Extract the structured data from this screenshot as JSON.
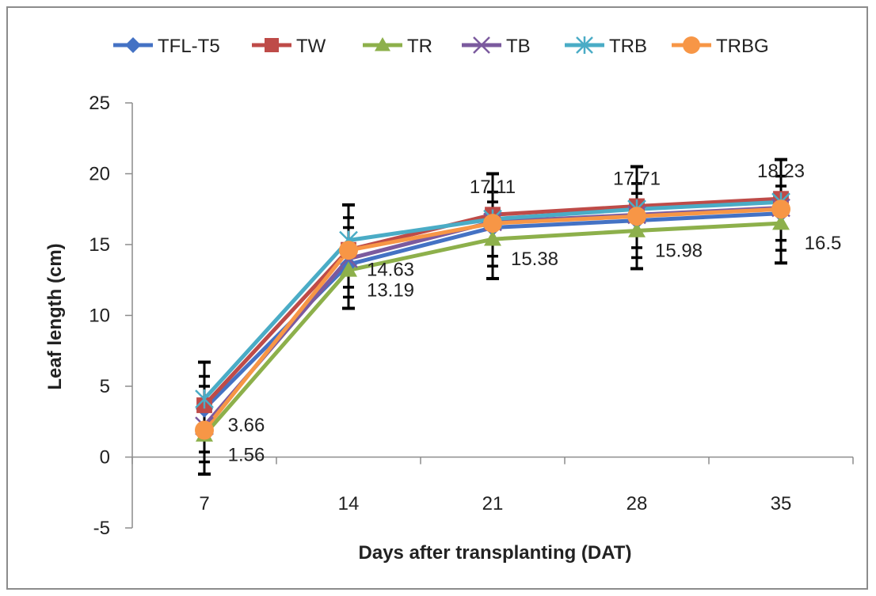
{
  "chart_data": {
    "type": "line",
    "title": "",
    "xlabel": "Days after transplanting (DAT)",
    "ylabel": "Leaf length (cm)",
    "ylim": [
      -5,
      25
    ],
    "yticks": [
      -5,
      0,
      5,
      10,
      15,
      20,
      25
    ],
    "categories": [
      "7",
      "14",
      "21",
      "28",
      "35"
    ],
    "legend_position": "top",
    "grid": false,
    "series": [
      {
        "name": "TFL-T5",
        "color": "#4472c4",
        "marker": "diamond",
        "values": [
          3.4,
          13.6,
          16.2,
          16.7,
          17.2
        ]
      },
      {
        "name": "TW",
        "color": "#be4b48",
        "marker": "square",
        "values": [
          3.66,
          14.63,
          17.11,
          17.71,
          18.23
        ]
      },
      {
        "name": "TR",
        "color": "#8db04b",
        "marker": "triangle",
        "values": [
          1.56,
          13.19,
          15.38,
          15.98,
          16.5
        ]
      },
      {
        "name": "TB",
        "color": "#7b5a9e",
        "marker": "x",
        "values": [
          2.2,
          14.0,
          16.6,
          17.1,
          17.6
        ]
      },
      {
        "name": "TRB",
        "color": "#4aacc6",
        "marker": "star",
        "values": [
          4.1,
          15.3,
          16.8,
          17.5,
          18.0
        ]
      },
      {
        "name": "TRBG",
        "color": "#f79646",
        "marker": "circle",
        "values": [
          1.9,
          14.6,
          16.5,
          17.0,
          17.5
        ]
      }
    ],
    "error_bars": {
      "upper": [
        6.7,
        17.8,
        20.0,
        20.5,
        21.0
      ],
      "lower": [
        -1.2,
        10.5,
        12.6,
        13.3,
        13.7
      ]
    },
    "data_labels": [
      {
        "text": "3.66",
        "category": "7",
        "value": 3.66
      },
      {
        "text": "1.56",
        "category": "7",
        "value": 1.56
      },
      {
        "text": "14.63",
        "category": "14",
        "value": 14.63
      },
      {
        "text": "13.19",
        "category": "14",
        "value": 13.19
      },
      {
        "text": "17.11",
        "category": "21",
        "value": 17.11
      },
      {
        "text": "15.38",
        "category": "21",
        "value": 15.38
      },
      {
        "text": "17.71",
        "category": "28",
        "value": 17.71
      },
      {
        "text": "15.98",
        "category": "28",
        "value": 15.98
      },
      {
        "text": "18.23",
        "category": "35",
        "value": 18.23
      },
      {
        "text": "16.5",
        "category": "35",
        "value": 16.5
      }
    ]
  }
}
